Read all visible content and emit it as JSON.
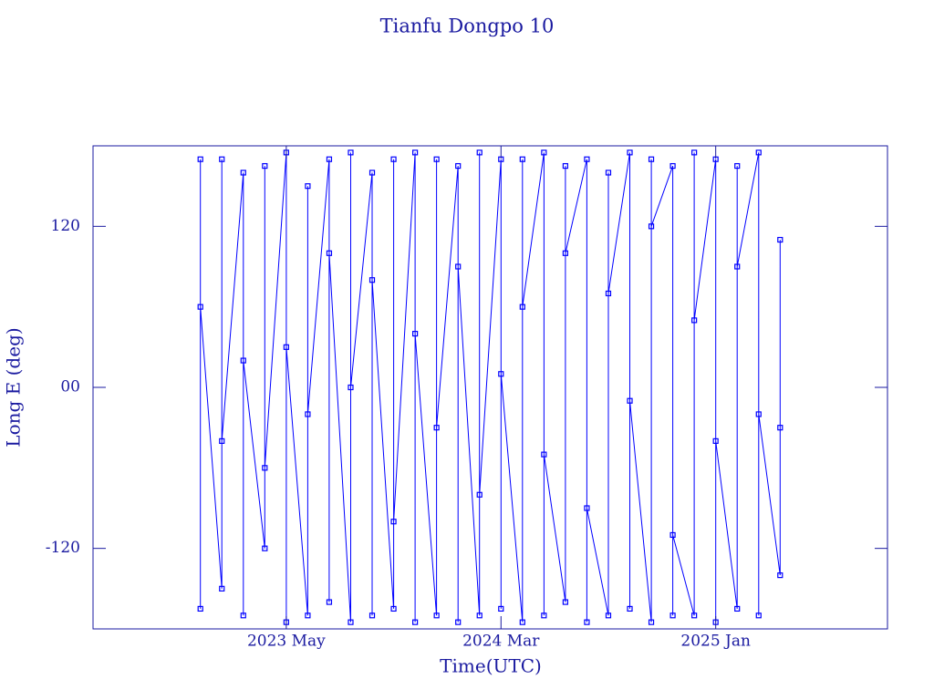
{
  "chart_data": {
    "type": "line",
    "title": "Tianfu Dongpo 10",
    "x_label": "Time(UTC)",
    "y_label": "Long E (deg)",
    "xlim": [
      "2022-08",
      "2025-09"
    ],
    "xticks": [
      {
        "value": "2023-05",
        "label": "2023 May"
      },
      {
        "value": "2024-03",
        "label": "2024 Mar"
      },
      {
        "value": "2025-01",
        "label": "2025 Jan"
      }
    ],
    "ylim": [
      -180,
      180
    ],
    "yticks": [
      -120,
      {
        "value": 0,
        "label": "00"
      },
      120
    ],
    "markers": true,
    "x": [
      "2023-01",
      "2023-01",
      "2023-01",
      "2023-02",
      "2023-02",
      "2023-02",
      "2023-03",
      "2023-03",
      "2023-03",
      "2023-04",
      "2023-04",
      "2023-04",
      "2023-05",
      "2023-05",
      "2023-05",
      "2023-06",
      "2023-06",
      "2023-06",
      "2023-07",
      "2023-07",
      "2023-07",
      "2023-08",
      "2023-08",
      "2023-08",
      "2023-09",
      "2023-09",
      "2023-09",
      "2023-10",
      "2023-10",
      "2023-10",
      "2023-11",
      "2023-11",
      "2023-11",
      "2023-12",
      "2023-12",
      "2023-12",
      "2024-01",
      "2024-01",
      "2024-01",
      "2024-02",
      "2024-02",
      "2024-02",
      "2024-03",
      "2024-03",
      "2024-03",
      "2024-04",
      "2024-04",
      "2024-04",
      "2024-05",
      "2024-05",
      "2024-05",
      "2024-06",
      "2024-06",
      "2024-06",
      "2024-07",
      "2024-07",
      "2024-07",
      "2024-08",
      "2024-08",
      "2024-08",
      "2024-09",
      "2024-09",
      "2024-09",
      "2024-10",
      "2024-10",
      "2024-10",
      "2024-11",
      "2024-11",
      "2024-11",
      "2024-12",
      "2024-12",
      "2024-12",
      "2025-01",
      "2025-01",
      "2025-01",
      "2025-02",
      "2025-02",
      "2025-02",
      "2025-03",
      "2025-03",
      "2025-03",
      "2025-04",
      "2025-04",
      "2025-04"
    ],
    "series": [
      {
        "name": "Tianfu Dongpo 10",
        "color": "#0000ff",
        "values": [
          170,
          -165,
          60,
          -150,
          170,
          -40,
          160,
          -170,
          20,
          -120,
          165,
          -60,
          175,
          -175,
          30,
          -170,
          150,
          -20,
          170,
          -160,
          100,
          -175,
          175,
          0,
          160,
          -170,
          80,
          -165,
          170,
          -100,
          175,
          -175,
          40,
          -170,
          170,
          -30,
          165,
          -175,
          90,
          -170,
          175,
          -80,
          170,
          -165,
          10,
          -175,
          170,
          60,
          175,
          -170,
          -50,
          -160,
          165,
          100,
          170,
          -175,
          -90,
          -170,
          160,
          70,
          175,
          -165,
          -10,
          -175,
          170,
          120,
          165,
          -170,
          -110,
          -170,
          175,
          50,
          170,
          -175,
          -40,
          -165,
          165,
          90,
          175,
          -170,
          -20,
          -140,
          110,
          -30
        ]
      }
    ]
  }
}
